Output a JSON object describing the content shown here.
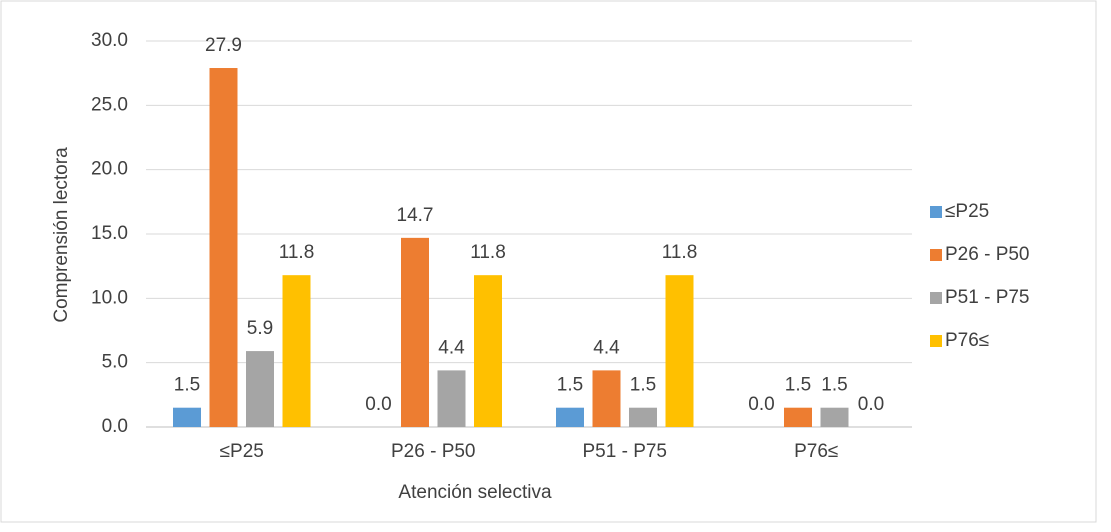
{
  "chart_data": {
    "type": "bar",
    "x_label": "Atención selectiva",
    "y_label": "Comprensión lectora",
    "categories": [
      "≤P25",
      "P26 - P50",
      "P51 - P75",
      "P76≤"
    ],
    "series": [
      {
        "name": "≤P25",
        "color": "#5b9bd5",
        "values": [
          1.5,
          0,
          1.5,
          0
        ],
        "value_labels": [
          "1.5",
          "0.0",
          "1.5",
          "0.0"
        ]
      },
      {
        "name": "P26 - P50",
        "color": "#ed7d31",
        "values": [
          27.9,
          14.7,
          4.4,
          1.5
        ],
        "value_labels": [
          "27.9",
          "14.7",
          "4.4",
          "1.5"
        ]
      },
      {
        "name": "P51 - P75",
        "color": "#a5a5a5",
        "values": [
          5.9,
          4.4,
          1.5,
          1.5
        ],
        "value_labels": [
          "5.9",
          "4.4",
          "1.5",
          "1.5"
        ]
      },
      {
        "name": "P76≤",
        "color": "#ffc000",
        "values": [
          11.8,
          11.8,
          11.8,
          0
        ],
        "value_labels": [
          "11.8",
          "11.8",
          "11.8",
          "0.0"
        ]
      }
    ],
    "ylim": [
      0,
      30
    ],
    "yticks": [
      {
        "value": 0,
        "label": "0.0"
      },
      {
        "value": 5,
        "label": "5.0"
      },
      {
        "value": 10,
        "label": "10.0"
      },
      {
        "value": 15,
        "label": "15.0"
      },
      {
        "value": 20,
        "label": "20.0"
      },
      {
        "value": 25,
        "label": "25.0"
      },
      {
        "value": 30,
        "label": "30.0"
      }
    ],
    "grid": true,
    "legend": "right"
  }
}
